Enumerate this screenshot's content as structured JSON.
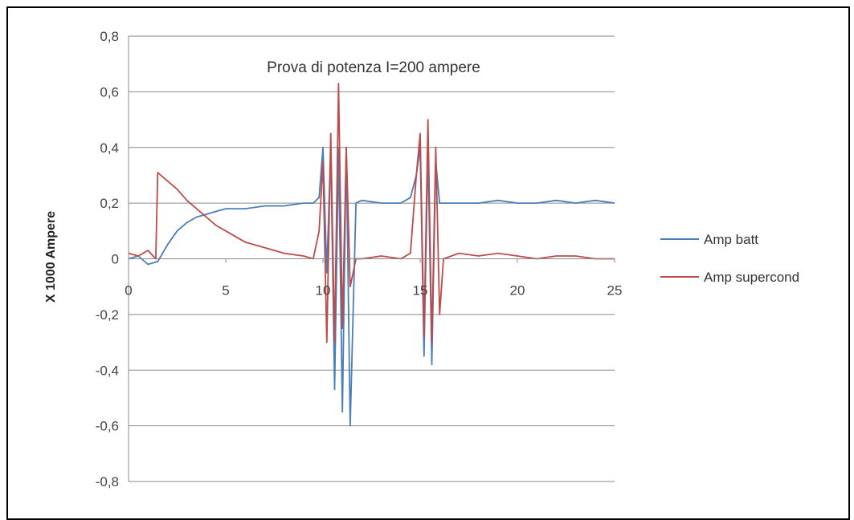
{
  "chart_data": {
    "type": "line",
    "title": "Prova di potenza    I=200 ampere",
    "xlabel": "",
    "ylabel": "X 1000  Ampere",
    "xlim": [
      0,
      25
    ],
    "ylim": [
      -0.8,
      0.8
    ],
    "x_ticks": [
      "0",
      "5",
      "10",
      "15",
      "20",
      "25"
    ],
    "y_ticks": [
      "0,8",
      "0,6",
      "0,4",
      "0,2",
      "0",
      "-0,2",
      "-0,4",
      "-0,6",
      "-0,8"
    ],
    "grid": true,
    "legend_position": "right",
    "series": [
      {
        "name": "Amp batt",
        "color": "#4a7ebb",
        "x": [
          0,
          0.5,
          1,
          1.5,
          2,
          2.5,
          3,
          3.5,
          4,
          4.5,
          5,
          6,
          7,
          8,
          9,
          9.5,
          9.8,
          10.0,
          10.2,
          10.4,
          10.6,
          10.8,
          11.0,
          11.2,
          11.4,
          11.7,
          12,
          13,
          14,
          14.5,
          14.8,
          15.0,
          15.2,
          15.4,
          15.6,
          15.8,
          16.0,
          16.2,
          17,
          18,
          19,
          20,
          21,
          22,
          23,
          24,
          25
        ],
        "y": [
          0.0,
          0.01,
          -0.02,
          -0.01,
          0.05,
          0.1,
          0.13,
          0.15,
          0.16,
          0.17,
          0.18,
          0.18,
          0.19,
          0.19,
          0.2,
          0.2,
          0.22,
          0.4,
          -0.05,
          0.4,
          -0.47,
          0.4,
          -0.55,
          0.4,
          -0.6,
          0.2,
          0.21,
          0.2,
          0.2,
          0.22,
          0.3,
          0.4,
          -0.35,
          0.4,
          -0.38,
          0.35,
          0.2,
          0.2,
          0.2,
          0.2,
          0.21,
          0.2,
          0.2,
          0.21,
          0.2,
          0.21,
          0.2
        ]
      },
      {
        "name": "Amp supercond",
        "color": "#be4b48",
        "x": [
          0,
          0.5,
          1,
          1.4,
          1.5,
          2,
          2.5,
          3,
          3.5,
          4,
          4.5,
          5,
          5.5,
          6,
          7,
          8,
          9,
          9.5,
          9.8,
          10.0,
          10.2,
          10.4,
          10.6,
          10.8,
          11.0,
          11.2,
          11.4,
          11.7,
          12,
          13,
          14,
          14.5,
          14.8,
          15.0,
          15.2,
          15.4,
          15.6,
          15.8,
          16.0,
          16.2,
          17,
          18,
          19,
          20,
          21,
          22,
          23,
          24,
          25
        ],
        "y": [
          0.02,
          0.01,
          0.03,
          0.0,
          0.31,
          0.28,
          0.25,
          0.21,
          0.18,
          0.15,
          0.12,
          0.1,
          0.08,
          0.06,
          0.04,
          0.02,
          0.01,
          0.0,
          0.1,
          0.35,
          -0.3,
          0.45,
          -0.3,
          0.63,
          -0.25,
          0.4,
          -0.1,
          0.0,
          0.0,
          0.01,
          0.0,
          0.02,
          0.3,
          0.45,
          -0.28,
          0.5,
          -0.3,
          0.4,
          -0.2,
          0.0,
          0.02,
          0.01,
          0.02,
          0.01,
          0.0,
          0.01,
          0.01,
          0.0,
          0.0
        ]
      }
    ]
  }
}
